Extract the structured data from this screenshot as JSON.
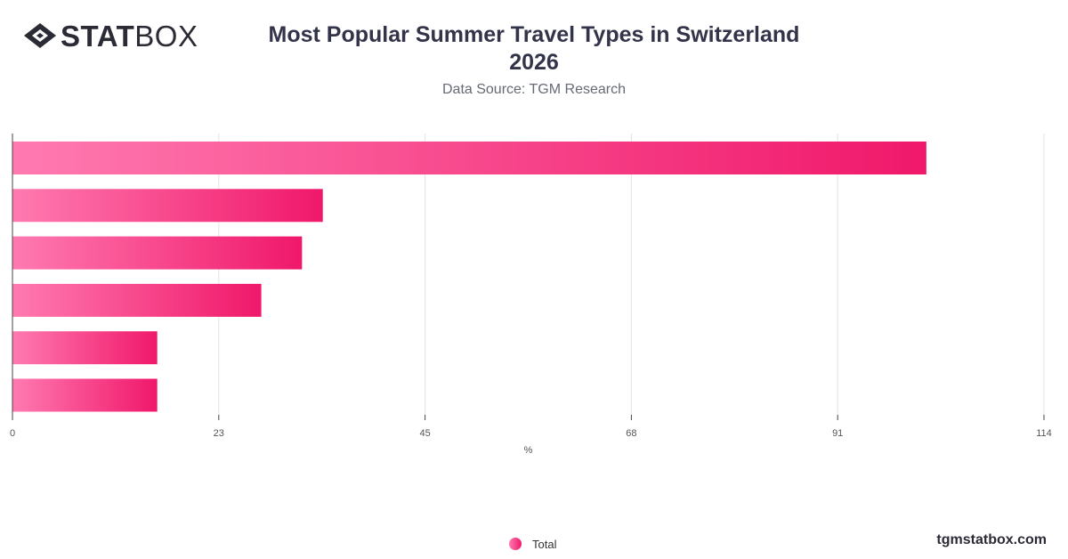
{
  "brand": {
    "bold": "STAT",
    "light": "BOX",
    "icon": "statbox-diamond-icon"
  },
  "header": {
    "title_line1": "Most Popular Summer Travel Types in Switzerland",
    "title_line2": "2026",
    "subtitle": "Data Source: TGM Research"
  },
  "chart_data": {
    "type": "bar",
    "orientation": "horizontal",
    "categories": [
      "",
      "",
      "",
      "",
      "",
      ""
    ],
    "series": [
      {
        "name": "Total",
        "values": [
          101,
          34.3,
          32,
          27.5,
          16,
          16
        ]
      }
    ],
    "xlabel": "%",
    "xlim": [
      0,
      114
    ],
    "xticks": [
      "0",
      "23",
      "45",
      "68",
      "91",
      "114"
    ],
    "grid": true,
    "legend_position": "bottom-center",
    "bar_color_start": "#ff7ab0",
    "bar_color_end": "#f0186a"
  },
  "legend": {
    "label": "Total"
  },
  "footer": {
    "site": "tgmstatbox.com"
  }
}
